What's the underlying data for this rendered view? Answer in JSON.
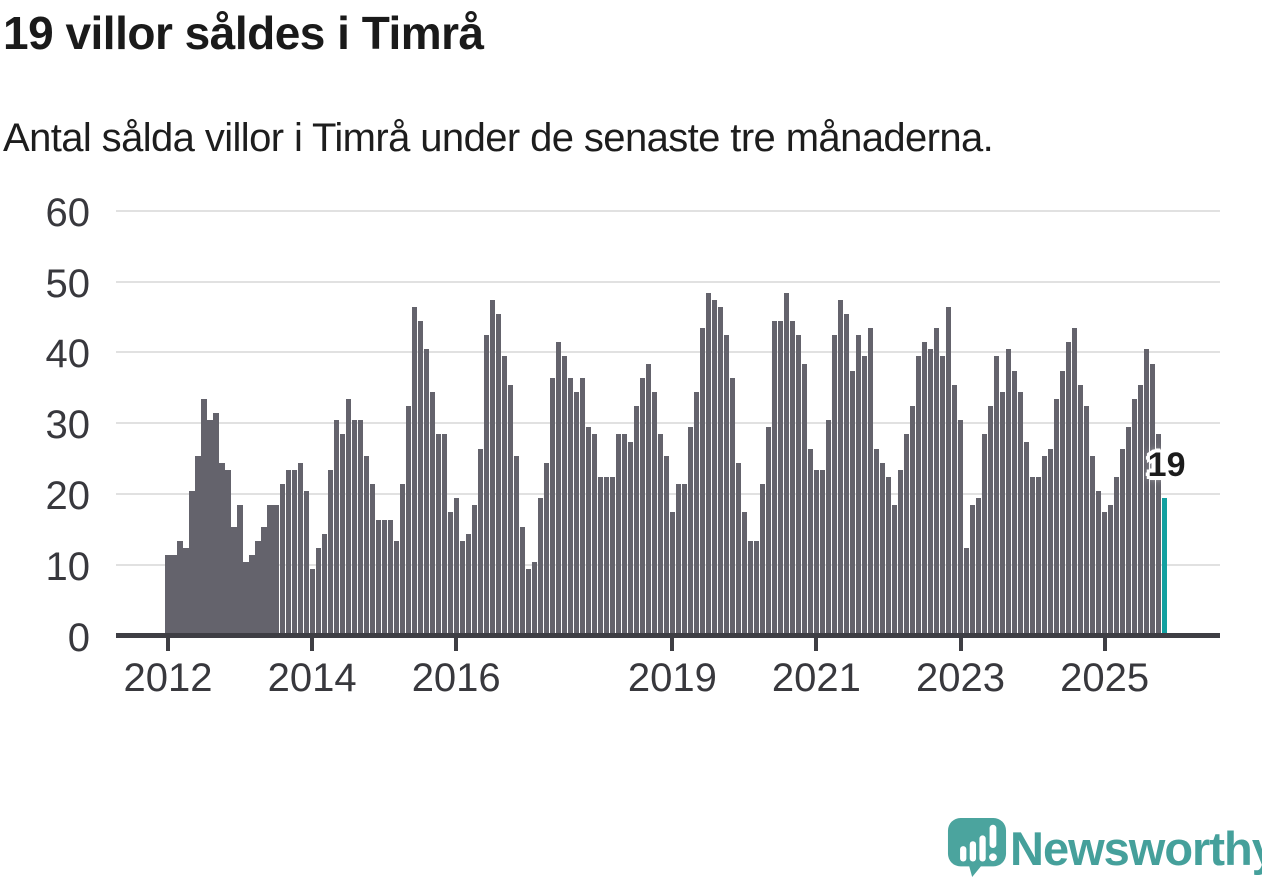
{
  "header": {
    "title": "19 villor såldes i Timrå",
    "subtitle": "Antal sålda villor i Timrå under de senaste tre månaderna."
  },
  "chart_data": {
    "type": "bar",
    "title": "19 villor såldes i Timrå",
    "xlabel": "",
    "ylabel": "",
    "ylim": [
      0,
      60
    ],
    "grid": true,
    "legend": "none",
    "y_ticks": [
      0,
      10,
      20,
      30,
      40,
      50,
      60
    ],
    "x_tick_labels": [
      "2012",
      "2014",
      "2016",
      "2019",
      "2021",
      "2023",
      "2025"
    ],
    "x_tick_years": [
      2012,
      2014,
      2016,
      2019,
      2021,
      2023,
      2025
    ],
    "series_start": "2012-01",
    "series_frequency": "monthly",
    "values": [
      11,
      11,
      13,
      12,
      20,
      25,
      33,
      30,
      31,
      24,
      23,
      15,
      18,
      10,
      11,
      13,
      15,
      18,
      18,
      21,
      23,
      23,
      24,
      20,
      9,
      12,
      14,
      23,
      30,
      28,
      33,
      30,
      30,
      25,
      21,
      16,
      16,
      16,
      13,
      21,
      32,
      46,
      44,
      40,
      34,
      28,
      28,
      17,
      19,
      13,
      14,
      18,
      26,
      42,
      47,
      45,
      39,
      35,
      25,
      15,
      9,
      10,
      19,
      24,
      36,
      41,
      39,
      36,
      34,
      36,
      29,
      28,
      22,
      22,
      22,
      28,
      28,
      27,
      32,
      36,
      38,
      34,
      28,
      25,
      17,
      21,
      21,
      29,
      34,
      43,
      48,
      47,
      46,
      42,
      36,
      24,
      17,
      13,
      13,
      21,
      29,
      44,
      44,
      48,
      44,
      42,
      38,
      26,
      23,
      23,
      30,
      42,
      47,
      45,
      37,
      42,
      39,
      43,
      26,
      24,
      22,
      18,
      23,
      28,
      32,
      39,
      41,
      40,
      43,
      39,
      46,
      35,
      30,
      12,
      18,
      19,
      28,
      32,
      39,
      34,
      40,
      37,
      34,
      27,
      22,
      22,
      25,
      26,
      33,
      37,
      41,
      43,
      35,
      32,
      25,
      20,
      17,
      18,
      22,
      26,
      29,
      33,
      35,
      40,
      38,
      28,
      19
    ],
    "highlight": {
      "position": "last",
      "value": 19,
      "label": "19"
    },
    "colors": {
      "bar": "#64636c",
      "highlight_bar": "#12a0a0",
      "gridline": "#e1e1e1",
      "axis": "#3e3e44",
      "tick_text": "#38383d",
      "annotation_text": "#1c1c1c"
    }
  },
  "footer": {
    "brand": "Newsworthy",
    "brand_color": "#45a09b",
    "logo_icon": "speech-bubble-bar-chart-icon",
    "logo_bubble_color": "#4ba49e"
  }
}
